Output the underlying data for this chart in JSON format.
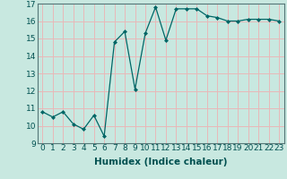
{
  "x": [
    0,
    1,
    2,
    3,
    4,
    5,
    6,
    7,
    8,
    9,
    10,
    11,
    12,
    13,
    14,
    15,
    16,
    17,
    18,
    19,
    20,
    21,
    22,
    23
  ],
  "y": [
    10.8,
    10.5,
    10.8,
    10.1,
    9.8,
    10.6,
    9.4,
    14.8,
    15.4,
    12.1,
    15.3,
    16.8,
    14.9,
    16.7,
    16.7,
    16.7,
    16.3,
    16.2,
    16.0,
    16.0,
    16.1,
    16.1,
    16.1,
    16.0
  ],
  "xlabel": "Humidex (Indice chaleur)",
  "ylim": [
    9,
    17
  ],
  "xlim": [
    -0.5,
    23.5
  ],
  "yticks": [
    9,
    10,
    11,
    12,
    13,
    14,
    15,
    16,
    17
  ],
  "xticks": [
    0,
    1,
    2,
    3,
    4,
    5,
    6,
    7,
    8,
    9,
    10,
    11,
    12,
    13,
    14,
    15,
    16,
    17,
    18,
    19,
    20,
    21,
    22,
    23
  ],
  "line_color": "#006666",
  "marker": "D",
  "marker_size": 2.0,
  "bg_color": "#c8e8e0",
  "grid_color": "#e8b8b8",
  "label_fontsize": 7.5,
  "tick_fontsize": 6.5
}
